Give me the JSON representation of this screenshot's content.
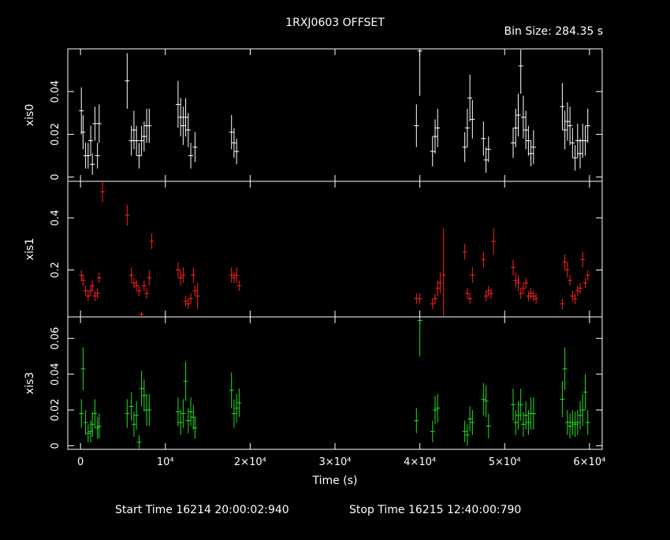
{
  "chart_data": {
    "type": "scatter",
    "title": "1RXJ0603 OFFSET",
    "bin_size": "Bin Size: 284.35 s",
    "xlabel": "Time (s)",
    "xlim": [
      -1500,
      61500
    ],
    "x_ticks": [
      {
        "v": 0,
        "label": "0"
      },
      {
        "v": 10000,
        "label": "10⁴"
      },
      {
        "v": 20000,
        "label": "2×10⁴"
      },
      {
        "v": 30000,
        "label": "3×10⁴"
      },
      {
        "v": 40000,
        "label": "4×10⁴"
      },
      {
        "v": 50000,
        "label": "5×10⁴"
      },
      {
        "v": 60000,
        "label": "6×10⁴"
      }
    ],
    "start_time": "Start Time 16214 20:00:02:940",
    "stop_time": "Stop Time 16215 12:40:00:790",
    "panels": [
      {
        "name": "xis0",
        "ylabel": "xis0",
        "color": "#ffffff",
        "ylim": [
          -0.002,
          0.06
        ],
        "y_ticks": [
          {
            "v": 0,
            "label": "0"
          },
          {
            "v": 0.02,
            "label": "0.02"
          },
          {
            "v": 0.04,
            "label": "0.04"
          }
        ],
        "points": [
          [
            100,
            0.031,
            0.011
          ],
          [
            300,
            0.021,
            0.008
          ],
          [
            600,
            0.01,
            0.006
          ],
          [
            900,
            0.01,
            0.006
          ],
          [
            1200,
            0.017,
            0.007
          ],
          [
            1400,
            0.006,
            0.005
          ],
          [
            1700,
            0.025,
            0.008
          ],
          [
            2000,
            0.01,
            0.006
          ],
          [
            2200,
            0.025,
            0.009
          ],
          [
            5500,
            0.045,
            0.013
          ],
          [
            6000,
            0.017,
            0.007
          ],
          [
            6300,
            0.022,
            0.009
          ],
          [
            6600,
            0.017,
            0.007
          ],
          [
            6900,
            0.01,
            0.006
          ],
          [
            7200,
            0.017,
            0.007
          ],
          [
            7500,
            0.019,
            0.007
          ],
          [
            7800,
            0.024,
            0.008
          ],
          [
            8100,
            0.024,
            0.008
          ],
          [
            11500,
            0.034,
            0.011
          ],
          [
            11800,
            0.028,
            0.009
          ],
          [
            12100,
            0.024,
            0.009
          ],
          [
            12400,
            0.028,
            0.009
          ],
          [
            12700,
            0.022,
            0.008
          ],
          [
            13000,
            0.01,
            0.006
          ],
          [
            13500,
            0.014,
            0.007
          ],
          [
            17800,
            0.021,
            0.008
          ],
          [
            18100,
            0.016,
            0.007
          ],
          [
            18400,
            0.012,
            0.006
          ],
          [
            39600,
            0.024,
            0.01
          ],
          [
            40000,
            0.059,
            0.021
          ],
          [
            41500,
            0.012,
            0.007
          ],
          [
            41800,
            0.019,
            0.008
          ],
          [
            42100,
            0.023,
            0.009
          ],
          [
            45300,
            0.014,
            0.007
          ],
          [
            45600,
            0.023,
            0.009
          ],
          [
            45900,
            0.037,
            0.011
          ],
          [
            46200,
            0.027,
            0.009
          ],
          [
            47500,
            0.018,
            0.008
          ],
          [
            47800,
            0.008,
            0.006
          ],
          [
            48100,
            0.013,
            0.006
          ],
          [
            51000,
            0.016,
            0.007
          ],
          [
            51300,
            0.023,
            0.009
          ],
          [
            51600,
            0.029,
            0.01
          ],
          [
            51900,
            0.052,
            0.013
          ],
          [
            52200,
            0.028,
            0.01
          ],
          [
            52500,
            0.022,
            0.009
          ],
          [
            52800,
            0.017,
            0.007
          ],
          [
            53100,
            0.011,
            0.006
          ],
          [
            53400,
            0.014,
            0.008
          ],
          [
            56800,
            0.033,
            0.011
          ],
          [
            57100,
            0.022,
            0.009
          ],
          [
            57400,
            0.026,
            0.009
          ],
          [
            57700,
            0.024,
            0.009
          ],
          [
            58000,
            0.016,
            0.007
          ],
          [
            58300,
            0.009,
            0.006
          ],
          [
            58600,
            0.017,
            0.008
          ],
          [
            58900,
            0.011,
            0.007
          ],
          [
            59200,
            0.017,
            0.008
          ],
          [
            59500,
            0.017,
            0.007
          ],
          [
            59800,
            0.024,
            0.008
          ]
        ]
      },
      {
        "name": "xis1",
        "ylabel": "xis1",
        "color": "#ff2020",
        "ylim": [
          0.02,
          0.54
        ],
        "y_ticks": [
          {
            "v": 0.2,
            "label": "0.2"
          },
          {
            "v": 0.4,
            "label": "0.4"
          }
        ],
        "points": [
          [
            100,
            0.18,
            0.02
          ],
          [
            300,
            0.16,
            0.02
          ],
          [
            600,
            0.12,
            0.02
          ],
          [
            900,
            0.1,
            0.02
          ],
          [
            1200,
            0.12,
            0.02
          ],
          [
            1400,
            0.14,
            0.02
          ],
          [
            1700,
            0.1,
            0.02
          ],
          [
            2000,
            0.11,
            0.02
          ],
          [
            2200,
            0.17,
            0.02
          ],
          [
            2600,
            0.5,
            0.04
          ],
          [
            5500,
            0.41,
            0.04
          ],
          [
            6000,
            0.18,
            0.03
          ],
          [
            6300,
            0.15,
            0.02
          ],
          [
            6600,
            0.14,
            0.02
          ],
          [
            6900,
            0.12,
            0.02
          ],
          [
            7200,
            0.03,
            0.01
          ],
          [
            7500,
            0.14,
            0.02
          ],
          [
            7800,
            0.11,
            0.02
          ],
          [
            8100,
            0.17,
            0.03
          ],
          [
            8400,
            0.31,
            0.03
          ],
          [
            11500,
            0.2,
            0.03
          ],
          [
            11800,
            0.17,
            0.03
          ],
          [
            12100,
            0.18,
            0.03
          ],
          [
            12400,
            0.08,
            0.02
          ],
          [
            12700,
            0.07,
            0.02
          ],
          [
            13000,
            0.09,
            0.02
          ],
          [
            13300,
            0.18,
            0.03
          ],
          [
            13500,
            0.12,
            0.02
          ],
          [
            13800,
            0.1,
            0.05
          ],
          [
            17800,
            0.18,
            0.03
          ],
          [
            18100,
            0.17,
            0.02
          ],
          [
            18400,
            0.18,
            0.03
          ],
          [
            18700,
            0.14,
            0.02
          ],
          [
            39600,
            0.09,
            0.02
          ],
          [
            40000,
            0.09,
            0.02
          ],
          [
            41500,
            0.07,
            0.02
          ],
          [
            41800,
            0.09,
            0.02
          ],
          [
            42100,
            0.13,
            0.03
          ],
          [
            42400,
            0.15,
            0.04
          ],
          [
            42800,
            0.18,
            0.18
          ],
          [
            45300,
            0.27,
            0.03
          ],
          [
            45600,
            0.11,
            0.02
          ],
          [
            45900,
            0.09,
            0.02
          ],
          [
            46200,
            0.18,
            0.03
          ],
          [
            47500,
            0.24,
            0.03
          ],
          [
            47800,
            0.1,
            0.02
          ],
          [
            48100,
            0.12,
            0.02
          ],
          [
            48400,
            0.11,
            0.02
          ],
          [
            48700,
            0.31,
            0.05
          ],
          [
            51000,
            0.21,
            0.03
          ],
          [
            51300,
            0.16,
            0.03
          ],
          [
            51600,
            0.15,
            0.03
          ],
          [
            51900,
            0.11,
            0.02
          ],
          [
            52200,
            0.13,
            0.02
          ],
          [
            52500,
            0.15,
            0.02
          ],
          [
            52800,
            0.1,
            0.02
          ],
          [
            53100,
            0.11,
            0.02
          ],
          [
            53400,
            0.1,
            0.02
          ],
          [
            53700,
            0.09,
            0.02
          ],
          [
            56800,
            0.07,
            0.02
          ],
          [
            57100,
            0.23,
            0.03
          ],
          [
            57400,
            0.2,
            0.03
          ],
          [
            57700,
            0.16,
            0.02
          ],
          [
            58000,
            0.1,
            0.02
          ],
          [
            58300,
            0.09,
            0.02
          ],
          [
            58600,
            0.12,
            0.02
          ],
          [
            58900,
            0.13,
            0.02
          ],
          [
            59200,
            0.24,
            0.03
          ],
          [
            59500,
            0.15,
            0.02
          ],
          [
            59800,
            0.18,
            0.02
          ]
        ]
      },
      {
        "name": "xis3",
        "ylabel": "xis3",
        "color": "#20e020",
        "ylim": [
          -0.002,
          0.072
        ],
        "y_ticks": [
          {
            "v": 0,
            "label": "0"
          },
          {
            "v": 0.02,
            "label": "0.02"
          },
          {
            "v": 0.04,
            "label": "0.04"
          },
          {
            "v": 0.06,
            "label": "0.06"
          }
        ],
        "points": [
          [
            100,
            0.018,
            0.008
          ],
          [
            300,
            0.043,
            0.012
          ],
          [
            600,
            0.013,
            0.007
          ],
          [
            900,
            0.007,
            0.005
          ],
          [
            1200,
            0.008,
            0.006
          ],
          [
            1400,
            0.012,
            0.007
          ],
          [
            1700,
            0.018,
            0.008
          ],
          [
            2000,
            0.01,
            0.006
          ],
          [
            2200,
            0.011,
            0.007
          ],
          [
            5500,
            0.018,
            0.008
          ],
          [
            6000,
            0.022,
            0.008
          ],
          [
            6300,
            0.012,
            0.007
          ],
          [
            6600,
            0.017,
            0.008
          ],
          [
            6900,
            0.002,
            0.004
          ],
          [
            7200,
            0.032,
            0.01
          ],
          [
            7500,
            0.028,
            0.009
          ],
          [
            7800,
            0.02,
            0.009
          ],
          [
            8100,
            0.02,
            0.009
          ],
          [
            11500,
            0.019,
            0.008
          ],
          [
            11800,
            0.013,
            0.007
          ],
          [
            12100,
            0.018,
            0.008
          ],
          [
            12400,
            0.036,
            0.011
          ],
          [
            12700,
            0.014,
            0.007
          ],
          [
            13000,
            0.019,
            0.008
          ],
          [
            13300,
            0.016,
            0.007
          ],
          [
            13500,
            0.01,
            0.006
          ],
          [
            17800,
            0.031,
            0.01
          ],
          [
            18100,
            0.018,
            0.008
          ],
          [
            18400,
            0.021,
            0.008
          ],
          [
            18700,
            0.024,
            0.008
          ],
          [
            39600,
            0.014,
            0.007
          ],
          [
            40000,
            0.07,
            0.02
          ],
          [
            41500,
            0.008,
            0.006
          ],
          [
            41800,
            0.02,
            0.008
          ],
          [
            42100,
            0.021,
            0.008
          ],
          [
            45300,
            0.008,
            0.006
          ],
          [
            45600,
            0.006,
            0.006
          ],
          [
            45900,
            0.015,
            0.007
          ],
          [
            46200,
            0.013,
            0.007
          ],
          [
            47500,
            0.026,
            0.009
          ],
          [
            47800,
            0.025,
            0.009
          ],
          [
            48100,
            0.011,
            0.007
          ],
          [
            51000,
            0.023,
            0.009
          ],
          [
            51300,
            0.013,
            0.007
          ],
          [
            51600,
            0.017,
            0.008
          ],
          [
            51900,
            0.023,
            0.009
          ],
          [
            52200,
            0.012,
            0.007
          ],
          [
            52500,
            0.017,
            0.008
          ],
          [
            52800,
            0.013,
            0.007
          ],
          [
            53100,
            0.018,
            0.009
          ],
          [
            53400,
            0.018,
            0.009
          ],
          [
            56800,
            0.026,
            0.01
          ],
          [
            57100,
            0.043,
            0.012
          ],
          [
            57400,
            0.013,
            0.007
          ],
          [
            57700,
            0.011,
            0.007
          ],
          [
            58000,
            0.013,
            0.007
          ],
          [
            58300,
            0.012,
            0.007
          ],
          [
            58600,
            0.013,
            0.007
          ],
          [
            58900,
            0.017,
            0.008
          ],
          [
            59200,
            0.02,
            0.009
          ],
          [
            59500,
            0.03,
            0.01
          ],
          [
            59800,
            0.013,
            0.007
          ]
        ]
      }
    ]
  }
}
